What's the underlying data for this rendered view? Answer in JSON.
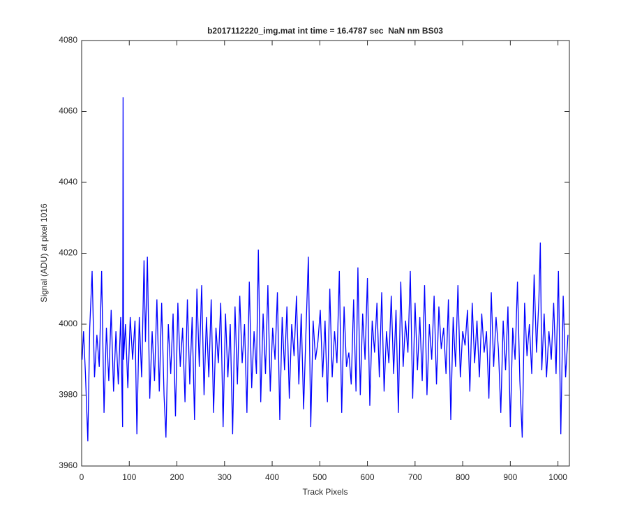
{
  "chart_data": {
    "type": "line",
    "title": "b2017112220_img.mat int time = 16.4787 sec  NaN nm BS03",
    "xlabel": "Track Pixels",
    "ylabel": "Signal (ADU) at pixel 1016",
    "color": "#0000ff",
    "xlim": [
      0,
      1024
    ],
    "xticks": [
      0,
      100,
      200,
      300,
      400,
      500,
      600,
      700,
      800,
      900,
      1000
    ],
    "ylim": [
      3960,
      4080
    ],
    "yticks": [
      3960,
      3980,
      4000,
      4020,
      4040,
      4060,
      4080
    ],
    "x": [
      1,
      4,
      8,
      13,
      17,
      22,
      27,
      32,
      37,
      42,
      47,
      52,
      57,
      62,
      67,
      72,
      77,
      82,
      86,
      87,
      88,
      92,
      97,
      102,
      107,
      112,
      116,
      121,
      126,
      131,
      134,
      138,
      143,
      148,
      153,
      158,
      163,
      168,
      173,
      177,
      182,
      187,
      192,
      197,
      202,
      207,
      212,
      217,
      222,
      227,
      232,
      237,
      242,
      247,
      252,
      257,
      262,
      267,
      272,
      277,
      282,
      287,
      292,
      297,
      302,
      307,
      312,
      317,
      322,
      327,
      332,
      337,
      342,
      347,
      352,
      357,
      362,
      367,
      371,
      376,
      381,
      386,
      391,
      396,
      401,
      406,
      411,
      416,
      421,
      426,
      431,
      436,
      441,
      446,
      451,
      456,
      461,
      466,
      471,
      476,
      481,
      486,
      491,
      496,
      501,
      506,
      511,
      516,
      521,
      526,
      531,
      536,
      541,
      546,
      551,
      556,
      561,
      566,
      571,
      576,
      580,
      585,
      590,
      595,
      600,
      605,
      610,
      615,
      620,
      625,
      630,
      635,
      640,
      645,
      650,
      655,
      660,
      665,
      670,
      675,
      680,
      685,
      690,
      695,
      700,
      705,
      710,
      715,
      720,
      725,
      730,
      735,
      740,
      745,
      750,
      755,
      760,
      765,
      770,
      775,
      780,
      785,
      790,
      795,
      800,
      805,
      810,
      815,
      820,
      825,
      830,
      835,
      840,
      845,
      850,
      855,
      860,
      865,
      870,
      875,
      880,
      885,
      890,
      895,
      900,
      905,
      910,
      915,
      920,
      925,
      930,
      935,
      940,
      945,
      950,
      955,
      960,
      963,
      966,
      971,
      976,
      981,
      986,
      991,
      996,
      1001,
      1006,
      1011,
      1016,
      1021
    ],
    "values": [
      3990,
      3998,
      3986,
      3967,
      3999,
      4015,
      3985,
      3997,
      3988,
      4015,
      3975,
      3999,
      3984,
      4004,
      3981,
      3998,
      3983,
      4002,
      3971,
      4064,
      3990,
      4000,
      3982,
      4002,
      3990,
      4001,
      3969,
      4002,
      3985,
      4018,
      3995,
      4019,
      3979,
      3998,
      3984,
      4007,
      3981,
      4006,
      3980,
      3968,
      4000,
      3986,
      4003,
      3974,
      4006,
      3988,
      3999,
      3978,
      4007,
      3983,
      4002,
      3973,
      4010,
      3988,
      4011,
      3980,
      4002,
      3985,
      4007,
      3975,
      3999,
      3989,
      4006,
      3971,
      4003,
      3985,
      4000,
      3969,
      4005,
      3983,
      4008,
      3989,
      4000,
      3975,
      4012,
      3982,
      3998,
      3986,
      4021,
      3978,
      4003,
      3986,
      4011,
      3981,
      3999,
      3990,
      4009,
      3973,
      4002,
      3987,
      4005,
      3979,
      4000,
      3991,
      4008,
      3983,
      4003,
      3976,
      3998,
      4019,
      3971,
      4001,
      3990,
      3995,
      4004,
      3985,
      4001,
      3978,
      4010,
      3985,
      3998,
      3989,
      4015,
      3975,
      4005,
      3988,
      3992,
      3983,
      4007,
      3981,
      4016,
      3980,
      4003,
      3990,
      4013,
      3977,
      4001,
      3992,
      4006,
      3985,
      4009,
      3981,
      3998,
      3989,
      4008,
      3986,
      4004,
      3975,
      4012,
      3988,
      4001,
      3992,
      4015,
      3979,
      4006,
      3987,
      4002,
      3984,
      4011,
      3980,
      4000,
      3990,
      4008,
      3983,
      4005,
      3993,
      3999,
      3986,
      4007,
      3973,
      4002,
      3988,
      4011,
      3985,
      3998,
      3994,
      4004,
      3981,
      4006,
      3989,
      4001,
      3985,
      4003,
      3992,
      3998,
      3979,
      4009,
      3988,
      4002,
      3993,
      3975,
      4001,
      3987,
      4005,
      3971,
      3999,
      3990,
      4012,
      3984,
      3968,
      4006,
      3991,
      4000,
      3986,
      4014,
      3992,
      4007,
      4023,
      3987,
      4003,
      3985,
      3998,
      3990,
      4006,
      3986,
      4015,
      3969,
      4008,
      3985,
      3997
    ]
  }
}
